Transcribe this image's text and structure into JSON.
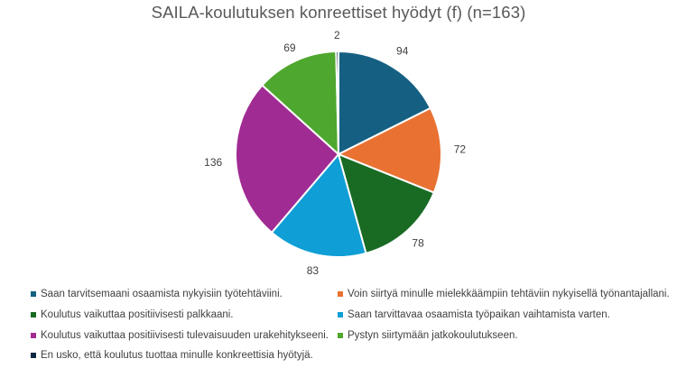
{
  "chart_data": {
    "type": "pie",
    "title": "SAILA-koulutuksen konreettiset hyödyt (f) (n=163)",
    "categories": [
      "Saan tarvitsemaani osaamista nykyisiin työtehtäviini.",
      "Voin siirtyä minulle mielekkäämpiin tehtäviin nykyisellä työnantajallani.",
      "Koulutus vaikuttaa positiivisesti palkkaani.",
      "Saan tarvittavaa osaamista työpaikan vaihtamista varten.",
      "Koulutus vaikuttaa positiivisesti tulevaisuuden urakehitykseeni.",
      "Pystyn siirtymään jatkokoulutukseen.",
      "En usko, että koulutus tuottaa minulle konkreettisia hyötyjä."
    ],
    "values": [
      94,
      72,
      78,
      83,
      136,
      69,
      2
    ],
    "colors": [
      "#156082",
      "#E97132",
      "#196B24",
      "#0F9ED5",
      "#A02B93",
      "#4EA72E",
      "#0E2841"
    ],
    "data_labels": [
      "94",
      "72",
      "78",
      "83",
      "136",
      "69",
      "2"
    ],
    "legend_position": "bottom",
    "start_angle_deg": 0,
    "direction": "clockwise"
  },
  "legend": {
    "items": [
      {
        "label": "Saan tarvitsemaani osaamista nykyisiin työtehtäviini.",
        "color": "#156082"
      },
      {
        "label": "Voin siirtyä minulle mielekkäämpiin tehtäviin nykyisellä työnantajallani.",
        "color": "#E97132"
      },
      {
        "label": "Koulutus vaikuttaa positiivisesti palkkaani.",
        "color": "#196B24"
      },
      {
        "label": "Saan tarvittavaa osaamista työpaikan vaihtamista varten.",
        "color": "#0F9ED5"
      },
      {
        "label": "Koulutus vaikuttaa positiivisesti tulevaisuuden urakehitykseeni.",
        "color": "#A02B93"
      },
      {
        "label": "Pystyn siirtymään jatkokoulutukseen.",
        "color": "#4EA72E"
      },
      {
        "label": "En usko, että koulutus tuottaa minulle konkreettisia hyötyjä.",
        "color": "#0E2841"
      }
    ]
  }
}
